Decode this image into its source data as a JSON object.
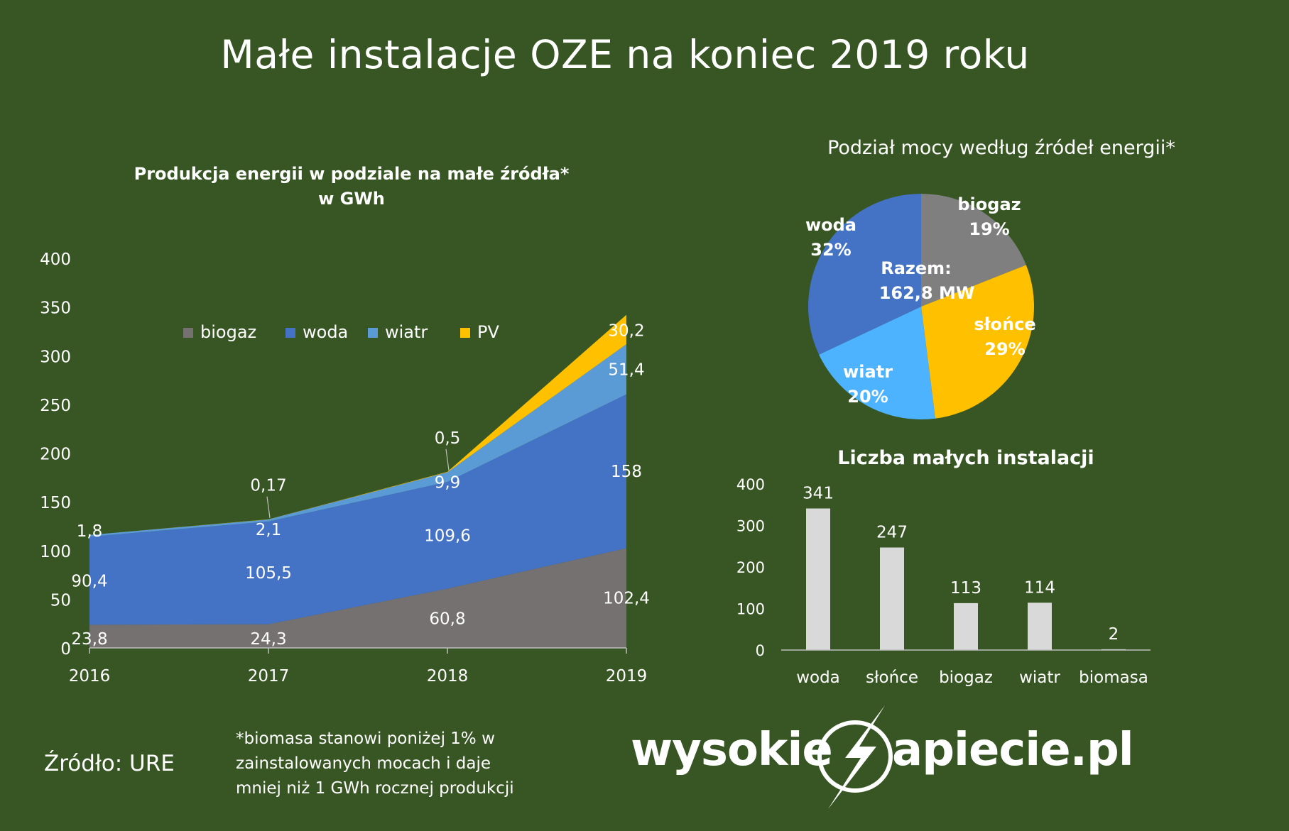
{
  "title": "Małe instalacje OZE na koniec 2019 roku",
  "chart_data": [
    {
      "type": "area",
      "title_line1": "Produkcja energii w podziale na małe źródła*",
      "title_line2": "w GWh",
      "categories": [
        "2016",
        "2017",
        "2018",
        "2019"
      ],
      "ylim": [
        0,
        400
      ],
      "yticks": [
        0,
        50,
        100,
        150,
        200,
        250,
        300,
        350,
        400
      ],
      "legend_position": "top",
      "series": [
        {
          "name": "biogaz",
          "color": "#767171",
          "values": [
            23.8,
            24.3,
            60.8,
            102.4
          ],
          "labels": [
            "23,8",
            "24,3",
            "60,8",
            "102,4"
          ]
        },
        {
          "name": "woda",
          "color": "#4472C4",
          "values": [
            90.4,
            105.5,
            109.6,
            158
          ],
          "labels": [
            "90,4",
            "105,5",
            "109,6",
            "158"
          ]
        },
        {
          "name": "wiatr",
          "color": "#5B9BD5",
          "values": [
            1.8,
            2.1,
            9.9,
            51.4
          ],
          "labels": [
            "1,8",
            "2,1",
            "9,9",
            "51,4"
          ]
        },
        {
          "name": "PV",
          "color": "#FFC000",
          "values": [
            0,
            0.17,
            0.5,
            30.2
          ],
          "labels": [
            "",
            "0,17",
            "0,5",
            "30,2"
          ]
        }
      ]
    },
    {
      "type": "pie",
      "title": "Podział mocy według źródeł energii*",
      "center_label_line1": "Razem:",
      "center_label_line2": "162,8 MW",
      "slices": [
        {
          "name": "biogaz",
          "percent": 19,
          "label": "19%",
          "color": "#7F7F7F"
        },
        {
          "name": "słońce",
          "percent": 29,
          "label": "29%",
          "color": "#FFC000"
        },
        {
          "name": "wiatr",
          "percent": 20,
          "label": "20%",
          "color": "#4DB3FF"
        },
        {
          "name": "woda",
          "percent": 32,
          "label": "32%",
          "color": "#4472C4"
        }
      ]
    },
    {
      "type": "bar",
      "title": "Liczba małych instalacji",
      "categories": [
        "woda",
        "słońce",
        "biogaz",
        "wiatr",
        "biomasa"
      ],
      "values": [
        341,
        247,
        113,
        114,
        2
      ],
      "labels": [
        "341",
        "247",
        "113",
        "114",
        "2"
      ],
      "ylim": [
        0,
        400
      ],
      "yticks": [
        0,
        100,
        200,
        300,
        400
      ],
      "bar_color": "#D9D9D9"
    }
  ],
  "source": "Źródło: URE",
  "footnote": [
    "*biomasa stanowi poniżej 1% w",
    "zainstalowanych mocach i daje",
    "mniej niż 1 GWh rocznej produkcji"
  ],
  "logo": {
    "part1": "wysokie",
    "part2": "apiecie.pl"
  }
}
